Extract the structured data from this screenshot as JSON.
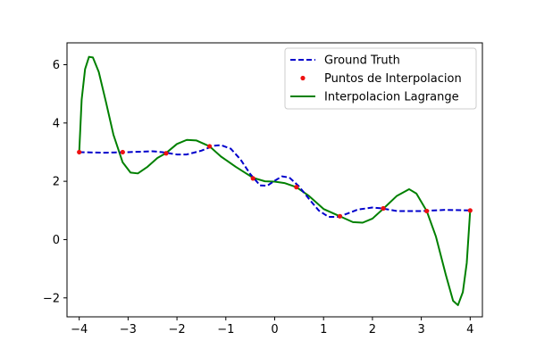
{
  "chart_data": {
    "type": "line",
    "title": "",
    "xlabel": "",
    "ylabel": "",
    "xlim": [
      -4.25,
      4.25
    ],
    "ylim": [
      -2.65,
      6.75
    ],
    "grid": false,
    "legend_position": "top-right",
    "x_ticks": [
      -4,
      -3,
      -2,
      -1,
      0,
      1,
      2,
      3,
      4
    ],
    "x_tick_labels": [
      "−4",
      "−3",
      "−2",
      "−1",
      "0",
      "1",
      "2",
      "3",
      "4"
    ],
    "y_ticks": [
      -2,
      0,
      2,
      4,
      6
    ],
    "y_tick_labels": [
      "−2",
      "0",
      "2",
      "4",
      "6"
    ],
    "series": [
      {
        "name": "Ground Truth",
        "kind": "line",
        "style": "dashed",
        "color": "#0000cc",
        "points": [
          [
            -4.0,
            3.0
          ],
          [
            -3.5,
            2.98
          ],
          [
            -3.0,
            3.0
          ],
          [
            -2.5,
            3.03
          ],
          [
            -2.3,
            3.0
          ],
          [
            -2.0,
            2.92
          ],
          [
            -1.8,
            2.92
          ],
          [
            -1.5,
            3.05
          ],
          [
            -1.25,
            3.22
          ],
          [
            -1.1,
            3.24
          ],
          [
            -0.9,
            3.12
          ],
          [
            -0.7,
            2.75
          ],
          [
            -0.5,
            2.25
          ],
          [
            -0.3,
            1.86
          ],
          [
            -0.15,
            1.85
          ],
          [
            0.0,
            2.02
          ],
          [
            0.15,
            2.17
          ],
          [
            0.3,
            2.13
          ],
          [
            0.5,
            1.82
          ],
          [
            0.7,
            1.4
          ],
          [
            0.9,
            1.0
          ],
          [
            1.1,
            0.78
          ],
          [
            1.3,
            0.78
          ],
          [
            1.5,
            0.9
          ],
          [
            1.7,
            1.03
          ],
          [
            2.0,
            1.1
          ],
          [
            2.2,
            1.07
          ],
          [
            2.5,
            0.98
          ],
          [
            3.0,
            0.98
          ],
          [
            3.5,
            1.02
          ],
          [
            4.0,
            1.0
          ]
        ]
      },
      {
        "name": "Puntos de Interpolacion",
        "kind": "scatter",
        "color": "#ee1111",
        "points": [
          [
            -4.0,
            3.0
          ],
          [
            -3.111,
            3.0
          ],
          [
            -2.222,
            2.96
          ],
          [
            -1.333,
            3.2
          ],
          [
            -0.444,
            2.1
          ],
          [
            0.444,
            1.8
          ],
          [
            1.333,
            0.8
          ],
          [
            2.222,
            1.07
          ],
          [
            3.111,
            0.98
          ],
          [
            4.0,
            1.0
          ]
        ]
      },
      {
        "name": "Interpolacion Lagrange",
        "kind": "line",
        "style": "solid",
        "color": "#008000",
        "points": [
          [
            -4.0,
            3.0
          ],
          [
            -3.95,
            4.8
          ],
          [
            -3.88,
            5.85
          ],
          [
            -3.8,
            6.27
          ],
          [
            -3.72,
            6.25
          ],
          [
            -3.6,
            5.75
          ],
          [
            -3.45,
            4.7
          ],
          [
            -3.3,
            3.6
          ],
          [
            -3.111,
            2.65
          ],
          [
            -2.95,
            2.3
          ],
          [
            -2.8,
            2.27
          ],
          [
            -2.6,
            2.5
          ],
          [
            -2.4,
            2.8
          ],
          [
            -2.222,
            2.97
          ],
          [
            -2.0,
            3.28
          ],
          [
            -1.8,
            3.42
          ],
          [
            -1.6,
            3.4
          ],
          [
            -1.333,
            3.2
          ],
          [
            -1.1,
            2.85
          ],
          [
            -0.8,
            2.5
          ],
          [
            -0.444,
            2.12
          ],
          [
            -0.2,
            2.0
          ],
          [
            0.0,
            1.99
          ],
          [
            0.2,
            1.94
          ],
          [
            0.444,
            1.8
          ],
          [
            0.7,
            1.5
          ],
          [
            1.0,
            1.05
          ],
          [
            1.333,
            0.8
          ],
          [
            1.6,
            0.6
          ],
          [
            1.8,
            0.58
          ],
          [
            2.0,
            0.72
          ],
          [
            2.222,
            1.06
          ],
          [
            2.5,
            1.5
          ],
          [
            2.75,
            1.73
          ],
          [
            2.9,
            1.58
          ],
          [
            3.111,
            0.98
          ],
          [
            3.3,
            0.1
          ],
          [
            3.5,
            -1.2
          ],
          [
            3.65,
            -2.1
          ],
          [
            3.75,
            -2.25
          ],
          [
            3.85,
            -1.8
          ],
          [
            3.93,
            -0.8
          ],
          [
            4.0,
            1.0
          ]
        ]
      }
    ]
  }
}
